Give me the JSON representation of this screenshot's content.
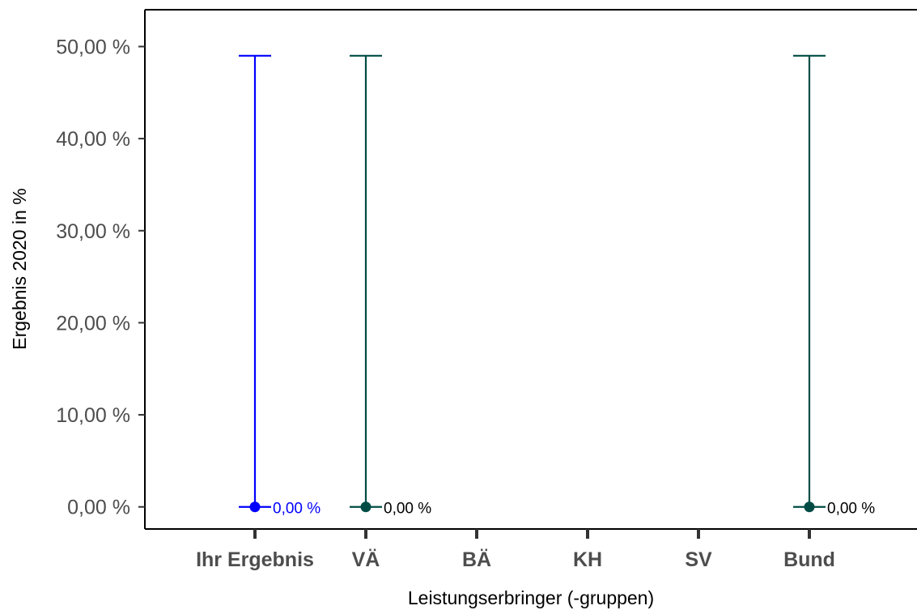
{
  "chart_data": {
    "type": "scatter",
    "title": "",
    "xlabel": "Leistungserbringer (-gruppen)",
    "ylabel": "Ergebnis 2020 in %",
    "categories": [
      "Ihr Ergebnis",
      "VÄ",
      "BÄ",
      "KH",
      "SV",
      "Bund"
    ],
    "ylim": [
      -2.4,
      54
    ],
    "yticks": [
      0,
      10,
      20,
      30,
      40,
      50
    ],
    "ytick_labels": [
      "0,00 %",
      "10,00 %",
      "20,00 %",
      "30,00 %",
      "40,00 %",
      "50,00 %"
    ],
    "grid": false,
    "legend": "none",
    "points": [
      {
        "category": "Ihr Ergebnis",
        "value": 0,
        "ci_lower": 0,
        "ci_upper": 49,
        "label": "0,00 %",
        "color": "#0000ff"
      },
      {
        "category": "VÄ",
        "value": 0,
        "ci_lower": 0,
        "ci_upper": 49,
        "label": "0,00 %",
        "color": "#004c45"
      },
      {
        "category": "Bund",
        "value": 0,
        "ci_lower": 0,
        "ci_upper": 49,
        "label": "0,00 %",
        "color": "#004c45"
      }
    ],
    "label_colors": {
      "Ihr Ergebnis": "#0000ff",
      "default": "#000000"
    }
  }
}
